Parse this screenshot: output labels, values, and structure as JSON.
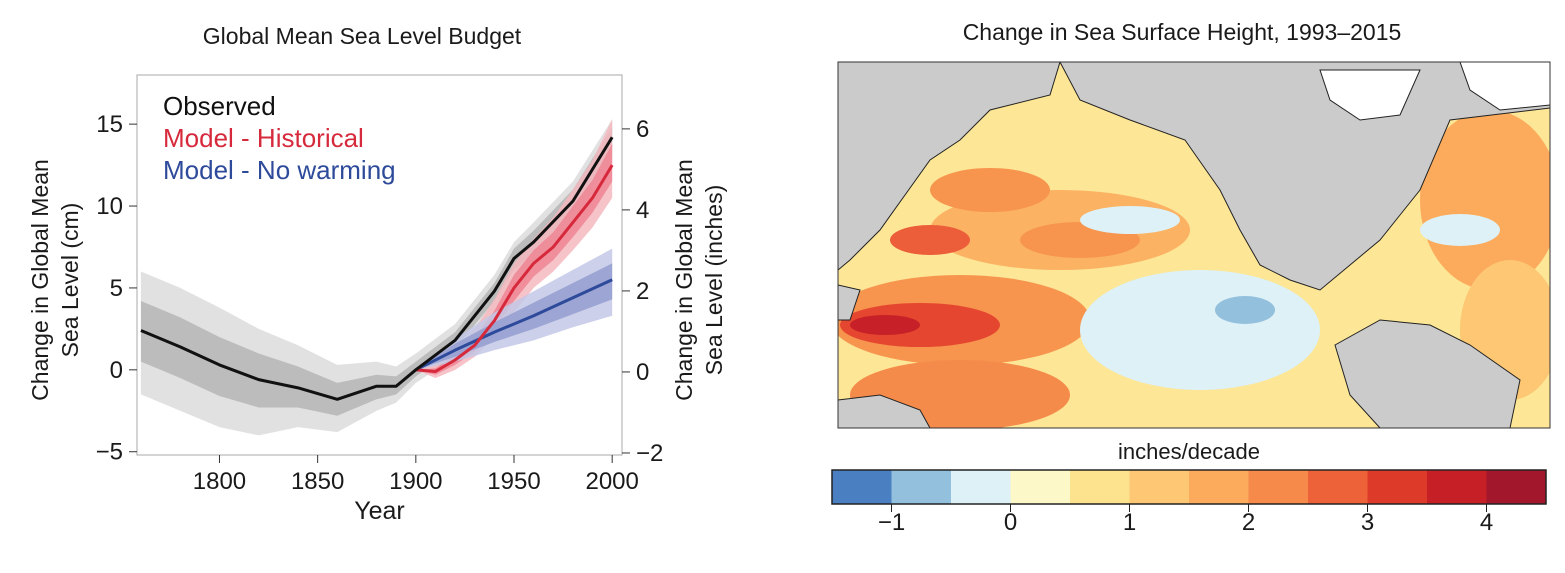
{
  "chart_data": [
    {
      "type": "line",
      "title": "Global Mean Sea Level Budget",
      "xlabel": "Year",
      "ylabel": [
        "Change in Global Mean",
        "Sea Level (cm)"
      ],
      "y2label": [
        "Change in Global Mean",
        "Sea Level (inches)"
      ],
      "xlim": [
        1758,
        2005
      ],
      "xticks": [
        1800,
        1850,
        1900,
        1950,
        2000
      ],
      "ylim": [
        -5.2,
        18
      ],
      "yticks": [
        {
          "value": -5,
          "label": "−5"
        },
        0,
        5,
        10,
        15
      ],
      "y2lim": [
        -2.05,
        7.33
      ],
      "y2ticks": [
        {
          "value": -2,
          "label": "−2"
        },
        0,
        2,
        4,
        6
      ],
      "legend": "upper left",
      "series": [
        {
          "name": "Observed",
          "color": "#111111",
          "x": [
            1760,
            1780,
            1800,
            1820,
            1840,
            1860,
            1880,
            1890,
            1900,
            1920,
            1940,
            1950,
            1960,
            1980,
            2000
          ],
          "values": [
            2.4,
            1.4,
            0.3,
            -0.6,
            -1.1,
            -1.8,
            -1.0,
            -1.0,
            0,
            1.8,
            4.8,
            6.8,
            7.8,
            10.3,
            14.2
          ],
          "ranges": [
            {
              "color": "#dcdcdc",
              "lower": [
                -1.5,
                -2.5,
                -3.5,
                -4.0,
                -3.5,
                -3.8,
                -2.5,
                -2.0,
                -0.8,
                0.8,
                3.5,
                5.5,
                6.5,
                9.0,
                13.0
              ],
              "upper": [
                6.0,
                5.0,
                3.8,
                2.5,
                1.5,
                0.3,
                0.5,
                0.2,
                1.0,
                2.8,
                5.8,
                7.8,
                9.0,
                11.5,
                15.3
              ]
            },
            {
              "color": "#b5b5b5",
              "lower": [
                0.5,
                -0.5,
                -1.6,
                -2.3,
                -2.3,
                -2.8,
                -1.8,
                -1.5,
                -0.4,
                1.3,
                4.2,
                6.1,
                7.1,
                9.6,
                13.6
              ],
              "upper": [
                4.2,
                3.2,
                2.0,
                1.0,
                0.2,
                -0.8,
                -0.3,
                -0.4,
                0.5,
                2.3,
                5.3,
                7.4,
                8.5,
                11.0,
                14.8
              ]
            }
          ]
        },
        {
          "name": "Model - Historical",
          "color": "#d62a3c",
          "x": [
            1900,
            1910,
            1920,
            1930,
            1940,
            1950,
            1960,
            1970,
            1980,
            1990,
            2000
          ],
          "values": [
            0,
            -0.1,
            0.6,
            1.5,
            3.0,
            5.0,
            6.5,
            7.5,
            9.0,
            10.5,
            12.5
          ],
          "ranges": [
            {
              "color": "#f5b8c0",
              "lower": [
                0,
                -0.5,
                0,
                0.8,
                2.0,
                3.5,
                5.0,
                6.0,
                7.3,
                8.7,
                10.5
              ],
              "upper": [
                0,
                0.3,
                1.2,
                2.5,
                4.3,
                6.5,
                8.0,
                9.3,
                11.0,
                12.8,
                15.3
              ]
            },
            {
              "color": "#ee8593",
              "lower": [
                0,
                -0.3,
                0.3,
                1.1,
                2.5,
                4.2,
                5.7,
                6.7,
                8.1,
                9.6,
                11.5
              ],
              "upper": [
                0,
                0.1,
                0.9,
                2.0,
                3.6,
                5.8,
                7.3,
                8.4,
                10.0,
                11.6,
                13.8
              ]
            }
          ]
        },
        {
          "name": "Model - No warming",
          "color": "#2e4a9a",
          "x": [
            1900,
            1920,
            1940,
            1960,
            1980,
            2000
          ],
          "values": [
            0,
            1.2,
            2.3,
            3.3,
            4.4,
            5.5
          ],
          "ranges": [
            {
              "color": "#c3c8e6",
              "lower": [
                0,
                0.5,
                1.2,
                1.8,
                2.6,
                3.3
              ],
              "upper": [
                0,
                1.9,
                3.5,
                4.8,
                6.1,
                7.4
              ]
            },
            {
              "color": "#949dd0",
              "lower": [
                0,
                0.8,
                1.7,
                2.5,
                3.4,
                4.3
              ],
              "upper": [
                0,
                1.6,
                2.9,
                4.1,
                5.3,
                6.5
              ]
            }
          ]
        }
      ]
    },
    {
      "type": "map",
      "title": "Change in Sea Surface Height, 1993–2015",
      "colorbar": {
        "label": "inches/decade",
        "bins": [
          -1.5,
          -1,
          -0.5,
          0,
          0.5,
          1,
          1.5,
          2,
          2.5,
          3,
          3.5,
          4,
          4.5
        ],
        "colors": [
          "#4a7fc1",
          "#93c0dd",
          "#ddf1f6",
          "#fdf8c8",
          "#fde38e",
          "#fdc774",
          "#fcab5c",
          "#f68a4b",
          "#ee623a",
          "#dd3a2a",
          "#c71f26",
          "#a2172b"
        ],
        "ticks": [
          {
            "value": -1,
            "label": "−1"
          },
          0,
          1,
          2,
          3,
          4
        ]
      }
    }
  ]
}
